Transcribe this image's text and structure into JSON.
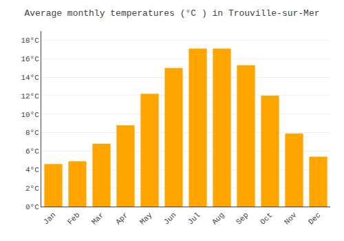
{
  "chart_data": {
    "type": "bar",
    "title": "Average monthly temperatures (°C ) in Trouville-sur-Mer",
    "categories": [
      "Jan",
      "Feb",
      "Mar",
      "Apr",
      "May",
      "Jun",
      "Jul",
      "Aug",
      "Sep",
      "Oct",
      "Nov",
      "Dec"
    ],
    "values": [
      4.6,
      4.9,
      6.8,
      8.8,
      12.2,
      15.0,
      17.1,
      17.1,
      15.3,
      12.0,
      7.9,
      5.4
    ],
    "color": "#FFA500",
    "ylim": [
      0,
      19
    ],
    "yticks": [
      {
        "value": 0,
        "label": "0°C"
      },
      {
        "value": 2,
        "label": "2°C"
      },
      {
        "value": 4,
        "label": "4°C"
      },
      {
        "value": 6,
        "label": "6°C"
      },
      {
        "value": 8,
        "label": "8°C"
      },
      {
        "value": 10,
        "label": "10°C"
      },
      {
        "value": 12,
        "label": "12°C"
      },
      {
        "value": 14,
        "label": "14°C"
      },
      {
        "value": 16,
        "label": "16°C"
      },
      {
        "value": 18,
        "label": "18°C"
      }
    ],
    "grid": true
  }
}
